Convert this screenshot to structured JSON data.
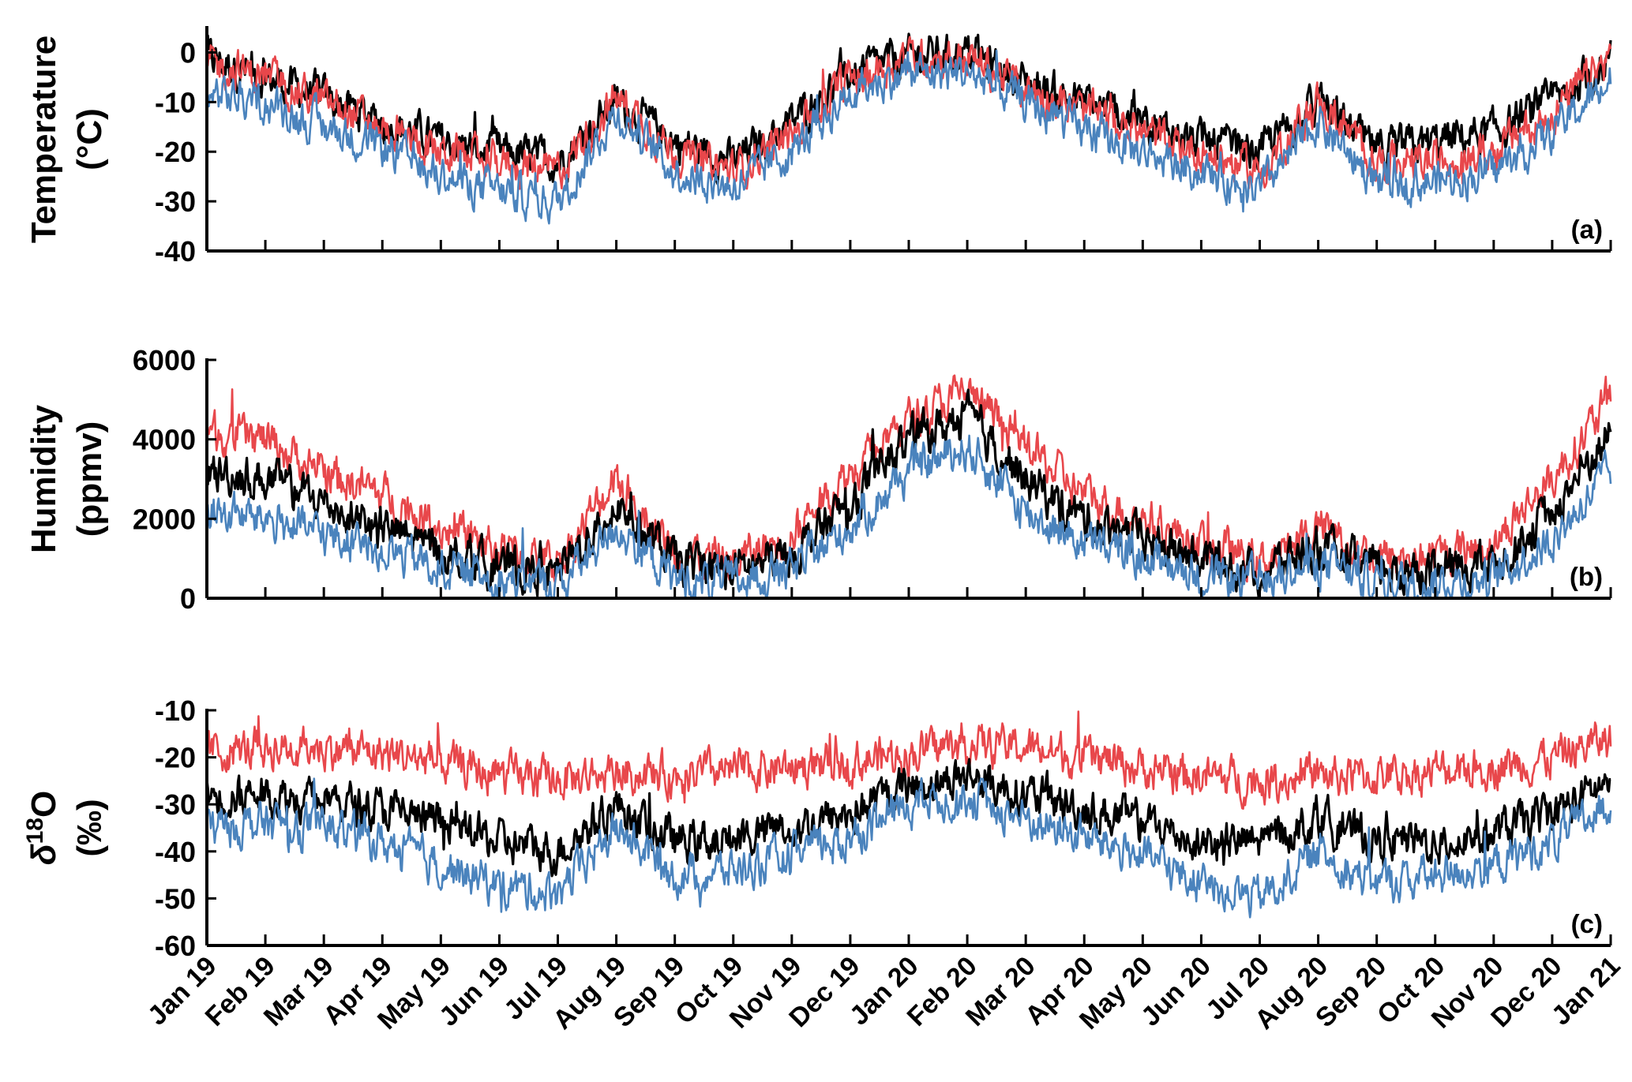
{
  "series_colors": {
    "black": "#000000",
    "red": "#e8474b",
    "blue": "#4a83bd"
  },
  "month_labels": [
    "Jan 19",
    "Feb 19",
    "Mar 19",
    "Apr 19",
    "May 19",
    "Jun 19",
    "Jul 19",
    "Aug 19",
    "Sep 19",
    "Oct 19",
    "Nov 19",
    "Dec 19",
    "Jan 20",
    "Feb 20",
    "Mar 20",
    "Apr 20",
    "May 20",
    "Jun 20",
    "Jul 20",
    "Aug 20",
    "Sep 20",
    "Oct 20",
    "Nov 20",
    "Dec 20",
    "Jan 21"
  ],
  "chart_data": [
    {
      "type": "line",
      "panel": "(a)",
      "ylabel_line1": "Temperature",
      "ylabel_line2": "(°C)",
      "ylim": [
        -40,
        5
      ],
      "yticks": [
        0,
        -10,
        -20,
        -30,
        -40
      ],
      "ytick_labels": [
        "0",
        "-10",
        "-20",
        "-30",
        "-40"
      ],
      "x_range": [
        "Jan 2019",
        "Jan 2021"
      ],
      "series": [
        {
          "color": "black",
          "monthly_values": [
            -1,
            -5,
            -9,
            -14,
            -18,
            -20,
            -22,
            -10,
            -18,
            -22,
            -14,
            -4,
            -1,
            0,
            -6,
            -10,
            -14,
            -18,
            -20,
            -10,
            -20,
            -18,
            -16,
            -10,
            -1
          ]
        },
        {
          "color": "red",
          "monthly_values": [
            -2,
            -5,
            -10,
            -15,
            -20,
            -22,
            -24,
            -9,
            -20,
            -24,
            -16,
            -5,
            -1,
            -1,
            -7,
            -12,
            -16,
            -20,
            -24,
            -10,
            -22,
            -22,
            -20,
            -12,
            -1
          ]
        },
        {
          "color": "blue",
          "monthly_values": [
            -8,
            -10,
            -15,
            -19,
            -25,
            -28,
            -30,
            -12,
            -24,
            -27,
            -20,
            -8,
            -4,
            -4,
            -10,
            -16,
            -20,
            -24,
            -28,
            -14,
            -26,
            -26,
            -24,
            -16,
            -6
          ]
        }
      ]
    },
    {
      "type": "line",
      "panel": "(b)",
      "ylabel_line1": "Humidity",
      "ylabel_line2": "(ppmv)",
      "ylim": [
        0,
        6000
      ],
      "yticks": [
        6000,
        4000,
        2000,
        0
      ],
      "ytick_labels": [
        "6000",
        "4000",
        "2000",
        "0"
      ],
      "x_range": [
        "Jan 2019",
        "Jan 2021"
      ],
      "series": [
        {
          "color": "red",
          "monthly_values": [
            4200,
            4000,
            3200,
            2600,
            1800,
            1200,
            900,
            3000,
            1200,
            900,
            1600,
            3200,
            4500,
            5200,
            3800,
            2600,
            2000,
            1400,
            900,
            1800,
            1000,
            1000,
            1400,
            3000,
            5000
          ]
        },
        {
          "color": "black",
          "monthly_values": [
            3200,
            3000,
            2400,
            1800,
            1200,
            800,
            600,
            2400,
            900,
            700,
            1100,
            2400,
            4000,
            4600,
            3000,
            2000,
            1500,
            1000,
            700,
            1300,
            700,
            700,
            900,
            2200,
            4200
          ]
        },
        {
          "color": "blue",
          "monthly_values": [
            2200,
            2000,
            1600,
            1200,
            800,
            500,
            300,
            1800,
            500,
            400,
            700,
            1800,
            3200,
            3800,
            2200,
            1400,
            1000,
            600,
            400,
            900,
            400,
            400,
            500,
            1500,
            3200
          ]
        }
      ]
    },
    {
      "type": "line",
      "panel": "(c)",
      "ylabel_line1": "δ18O",
      "ylabel_symbol": "δ",
      "ylabel_super": "18",
      "ylabel_tail": "O",
      "ylabel_line2": "(‰)",
      "ylim": [
        -60,
        -10
      ],
      "yticks": [
        -10,
        -20,
        -30,
        -40,
        -50,
        -60
      ],
      "ytick_labels": [
        "-10",
        "-20",
        "-30",
        "-40",
        "-50",
        "-60"
      ],
      "x_range": [
        "Jan 2019",
        "Jan 2021"
      ],
      "series": [
        {
          "color": "red",
          "monthly_values": [
            -19,
            -18,
            -18,
            -19,
            -21,
            -24,
            -25,
            -23,
            -24,
            -23,
            -22,
            -21,
            -19,
            -17,
            -18,
            -20,
            -22,
            -24,
            -25,
            -24,
            -24,
            -23,
            -22,
            -20,
            -16
          ]
        },
        {
          "color": "black",
          "monthly_values": [
            -28,
            -28,
            -29,
            -31,
            -34,
            -38,
            -40,
            -30,
            -38,
            -37,
            -35,
            -32,
            -26,
            -24,
            -28,
            -31,
            -34,
            -38,
            -38,
            -33,
            -38,
            -38,
            -36,
            -32,
            -25
          ]
        },
        {
          "color": "blue",
          "monthly_values": [
            -35,
            -34,
            -35,
            -38,
            -43,
            -47,
            -49,
            -35,
            -45,
            -44,
            -41,
            -37,
            -30,
            -28,
            -33,
            -37,
            -41,
            -47,
            -50,
            -40,
            -47,
            -45,
            -43,
            -38,
            -30
          ]
        }
      ]
    }
  ]
}
